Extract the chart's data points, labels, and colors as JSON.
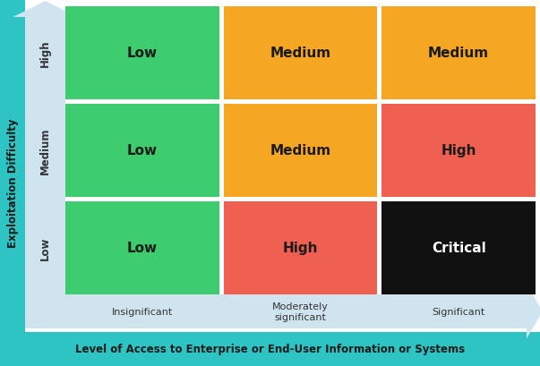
{
  "grid": [
    [
      {
        "label": "Low",
        "color": "#3dcc6e",
        "text_color": "#1a1a1a"
      },
      {
        "label": "Medium",
        "color": "#f5a623",
        "text_color": "#1a1a1a"
      },
      {
        "label": "Medium",
        "color": "#f5a623",
        "text_color": "#1a1a1a"
      }
    ],
    [
      {
        "label": "Low",
        "color": "#3dcc6e",
        "text_color": "#1a1a1a"
      },
      {
        "label": "Medium",
        "color": "#f5a623",
        "text_color": "#1a1a1a"
      },
      {
        "label": "High",
        "color": "#f06050",
        "text_color": "#1a1a1a"
      }
    ],
    [
      {
        "label": "Low",
        "color": "#3dcc6e",
        "text_color": "#1a1a1a"
      },
      {
        "label": "High",
        "color": "#f06050",
        "text_color": "#1a1a1a"
      },
      {
        "label": "Critical",
        "color": "#111111",
        "text_color": "#ffffff"
      }
    ]
  ],
  "row_labels": [
    "High",
    "Medium",
    "Low"
  ],
  "col_labels": [
    "Insignificant",
    "Moderately\nsignificant",
    "Significant"
  ],
  "y_axis_label": "Exploitation Difficulty",
  "x_axis_label": "Level of Access to Enterprise or End-User Information or Systems",
  "background_color": "#ffffff",
  "arrow_color": "#d0e4f0",
  "teal_color": "#2ec4c4",
  "cell_font_size": 11,
  "row_label_font_size": 8.5,
  "col_label_font_size": 8,
  "axis_label_font_size": 8.5
}
